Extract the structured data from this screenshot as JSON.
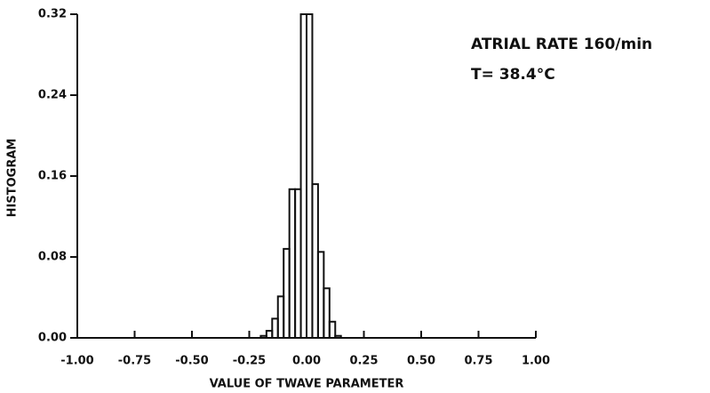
{
  "chart_data": {
    "type": "histogram",
    "annotations": [
      "ATRIAL RATE 160/min",
      "T= 38.4°C"
    ],
    "xlabel": "VALUE OF TWAVE PARAMETER",
    "ylabel": "HISTOGRAM",
    "bins": [
      -0.2,
      -0.175,
      -0.15,
      -0.125,
      -0.1,
      -0.075,
      -0.05,
      -0.025,
      0,
      0.025,
      0.05,
      0.075,
      0.1,
      0.125,
      0.15
    ],
    "values": [
      0.002,
      0.007,
      0.019,
      0.041,
      0.088,
      0.147,
      0.147,
      0.32,
      0.32,
      0.152,
      0.085,
      0.049,
      0.016,
      0.002
    ],
    "color": "#111111",
    "xlim": [
      -1,
      1
    ],
    "xticks": [
      {
        "value": -1,
        "label": "-1.00"
      },
      {
        "value": -0.75,
        "label": "-0.75"
      },
      {
        "value": -0.5,
        "label": "-0.50"
      },
      {
        "value": -0.25,
        "label": "-0.25"
      },
      {
        "value": 0,
        "label": "0.00"
      },
      {
        "value": 0.25,
        "label": "0.25"
      },
      {
        "value": 0.5,
        "label": "0.50"
      },
      {
        "value": 0.75,
        "label": "0.75"
      },
      {
        "value": 1,
        "label": "1.00"
      }
    ],
    "ylim": [
      0,
      0.32
    ],
    "yticks": [
      {
        "value": 0,
        "label": "0.00"
      },
      {
        "value": 0.08,
        "label": "0.08"
      },
      {
        "value": 0.16,
        "label": "0.16"
      },
      {
        "value": 0.24,
        "label": "0.24"
      },
      {
        "value": 0.32,
        "label": "0.32"
      }
    ]
  }
}
